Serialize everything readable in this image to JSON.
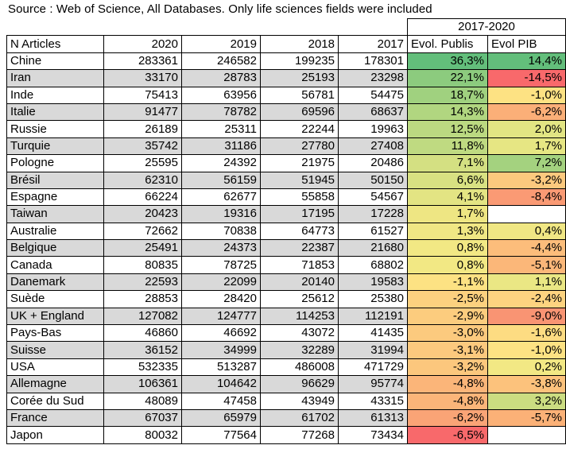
{
  "source": "Source : Web of Science, All Databases. Only life sciences fields were included",
  "period": "2017-2020",
  "headers": [
    "N Articles",
    "2020",
    "2019",
    "2018",
    "2017",
    "Evol. Publis",
    "Evol PIB"
  ],
  "rows": [
    {
      "country": "Chine",
      "y2020": "283361",
      "y2019": "246582",
      "y2018": "199235",
      "y2017": "178301",
      "evol": "36,3%",
      "pib": "14,4%",
      "evol_color": "#63be7b",
      "pib_color": "#63be7b"
    },
    {
      "country": "Iran",
      "y2020": "33170",
      "y2019": "28783",
      "y2018": "25193",
      "y2017": "23298",
      "evol": "22,1%",
      "pib": "-14,5%",
      "evol_color": "#8ccb7e",
      "pib_color": "#f8696b"
    },
    {
      "country": "Inde",
      "y2020": "75413",
      "y2019": "63956",
      "y2018": "56781",
      "y2017": "54475",
      "evol": "18,7%",
      "pib": "-1,0%",
      "evol_color": "#a0d17f",
      "pib_color": "#fde283"
    },
    {
      "country": "Italie",
      "y2020": "91477",
      "y2019": "78782",
      "y2018": "69596",
      "y2017": "68637",
      "evol": "14,3%",
      "pib": "-6,2%",
      "evol_color": "#b1d680",
      "pib_color": "#fbaf78"
    },
    {
      "country": "Russie",
      "y2020": "26189",
      "y2019": "25311",
      "y2018": "22244",
      "y2017": "19963",
      "evol": "12,5%",
      "pib": "2,0%",
      "evol_color": "#bbd981",
      "pib_color": "#e2e583"
    },
    {
      "country": "Turquie",
      "y2020": "35742",
      "y2019": "31186",
      "y2018": "27780",
      "y2017": "27408",
      "evol": "11,8%",
      "pib": "1,7%",
      "evol_color": "#bfda81",
      "pib_color": "#e6e683"
    },
    {
      "country": "Pologne",
      "y2020": "25595",
      "y2019": "24392",
      "y2018": "21975",
      "y2017": "20486",
      "evol": "7,1%",
      "pib": "7,2%",
      "evol_color": "#d4e082",
      "pib_color": "#a4d27f"
    },
    {
      "country": "Brésil",
      "y2020": "62310",
      "y2019": "56159",
      "y2018": "51945",
      "y2017": "50150",
      "evol": "6,6%",
      "pib": "-3,2%",
      "evol_color": "#d8e182",
      "pib_color": "#fcc97e"
    },
    {
      "country": "Espagne",
      "y2020": "66224",
      "y2019": "62677",
      "y2018": "55858",
      "y2017": "54567",
      "evol": "4,1%",
      "pib": "-8,4%",
      "evol_color": "#e3e483",
      "pib_color": "#fa9a74"
    },
    {
      "country": "Taiwan",
      "y2020": "20423",
      "y2019": "19316",
      "y2018": "17195",
      "y2017": "17228",
      "evol": "1,7%",
      "pib": "",
      "evol_color": "#eee683",
      "pib_color": "#ffffff"
    },
    {
      "country": "Australie",
      "y2020": "72662",
      "y2019": "70838",
      "y2018": "64773",
      "y2017": "61527",
      "evol": "1,3%",
      "pib": "0,4%",
      "evol_color": "#f0e784",
      "pib_color": "#f0e784"
    },
    {
      "country": "Belgique",
      "y2020": "25491",
      "y2019": "24373",
      "y2018": "22387",
      "y2017": "21680",
      "evol": "0,8%",
      "pib": "-4,4%",
      "evol_color": "#f2e884",
      "pib_color": "#fcbd7b"
    },
    {
      "country": "Canada",
      "y2020": "80835",
      "y2019": "78725",
      "y2018": "71853",
      "y2017": "68802",
      "evol": "0,8%",
      "pib": "-5,1%",
      "evol_color": "#f2e884",
      "pib_color": "#fbb779"
    },
    {
      "country": "Danemark",
      "y2020": "22593",
      "y2019": "22099",
      "y2018": "20140",
      "y2017": "19583",
      "evol": "-1,1%",
      "pib": "1,1%",
      "evol_color": "#fde283",
      "pib_color": "#eae784"
    },
    {
      "country": "Suède",
      "y2020": "28853",
      "y2019": "28420",
      "y2018": "25612",
      "y2017": "25380",
      "evol": "-2,5%",
      "pib": "-2,4%",
      "evol_color": "#fcd17f",
      "pib_color": "#fdd380"
    },
    {
      "country": "UK + England",
      "y2020": "127082",
      "y2019": "124777",
      "y2018": "114253",
      "y2017": "112191",
      "evol": "-2,9%",
      "pib": "-9,0%",
      "evol_color": "#fccc7e",
      "pib_color": "#f99473"
    },
    {
      "country": "Pays-Bas",
      "y2020": "46860",
      "y2019": "46692",
      "y2018": "43072",
      "y2017": "41435",
      "evol": "-3,0%",
      "pib": "-1,6%",
      "evol_color": "#fcca7e",
      "pib_color": "#fddc82"
    },
    {
      "country": "Suisse",
      "y2020": "36152",
      "y2019": "34999",
      "y2018": "32289",
      "y2017": "31994",
      "evol": "-3,1%",
      "pib": "-1,0%",
      "evol_color": "#fcc97e",
      "pib_color": "#fde283"
    },
    {
      "country": "USA",
      "y2020": "532335",
      "y2019": "513287",
      "y2018": "486008",
      "y2017": "471729",
      "evol": "-3,2%",
      "pib": "0,2%",
      "evol_color": "#fcc77d",
      "pib_color": "#f2e884"
    },
    {
      "country": "Allemagne",
      "y2020": "106361",
      "y2019": "104642",
      "y2018": "96629",
      "y2017": "95774",
      "evol": "-4,8%",
      "pib": "-3,8%",
      "evol_color": "#fbb579",
      "pib_color": "#fcc27c"
    },
    {
      "country": "Corée du Sud",
      "y2020": "48089",
      "y2019": "47458",
      "y2018": "43949",
      "y2017": "43315",
      "evol": "-4,8%",
      "pib": "3,2%",
      "evol_color": "#fbb579",
      "pib_color": "#cbdd81"
    },
    {
      "country": "France",
      "y2020": "67037",
      "y2019": "65979",
      "y2018": "61702",
      "y2017": "61313",
      "evol": "-6,2%",
      "pib": "-5,7%",
      "evol_color": "#faa476",
      "pib_color": "#fbb177"
    },
    {
      "country": "Japon",
      "y2020": "80032",
      "y2019": "77564",
      "y2018": "77268",
      "y2017": "73434",
      "evol": "-6,5%",
      "pib": "",
      "evol_color": "#f8696b",
      "pib_color": "#ffffff"
    }
  ]
}
